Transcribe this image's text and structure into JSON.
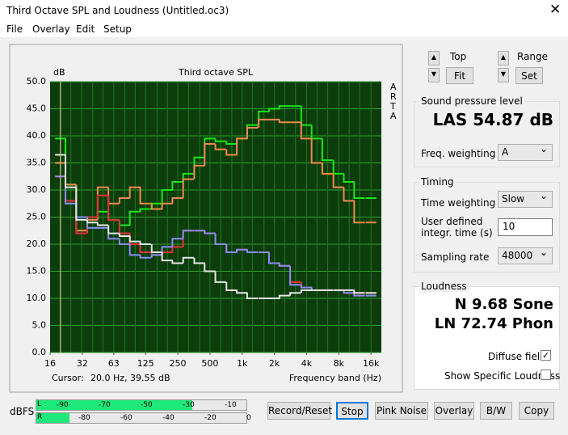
{
  "window": {
    "title": "Third Octave SPL and Loudness (Untitled.oc3)"
  },
  "menu": [
    "File",
    "Overlay",
    "Edit",
    "Setup"
  ],
  "chart_data": {
    "type": "step",
    "title": "Third octave SPL",
    "y_label": "dB",
    "x_label": "Frequency band (Hz)",
    "brand": "ARTA",
    "cursor_label": "Cursor:",
    "cursor_value": "20.0 Hz, 39.55 dB",
    "x": [
      20,
      25,
      31.5,
      40,
      50,
      63,
      80,
      100,
      125,
      160,
      200,
      250,
      315,
      400,
      500,
      630,
      800,
      1000,
      1250,
      1600,
      2000,
      2500,
      3150,
      4000,
      5000,
      6300,
      8000,
      10000,
      12500,
      16000
    ],
    "series": [
      {
        "color": "#19e619",
        "values": [
          39.5,
          31,
          25,
          25,
          26,
          24.5,
          23.5,
          26,
          26.5,
          27.5,
          30,
          31.5,
          33,
          36,
          39.5,
          39,
          38.5,
          39.5,
          42,
          44.5,
          45,
          45.5,
          45.5,
          42,
          39.5,
          35.5,
          33,
          31.5,
          28.5,
          28.5
        ]
      },
      {
        "color": "#f08a4b",
        "values": [
          35,
          31,
          22.5,
          24.5,
          30.5,
          27.5,
          28.5,
          30.5,
          27.5,
          26.5,
          27.5,
          28.5,
          32,
          34.5,
          38.5,
          37.5,
          36.5,
          39.5,
          41.5,
          43,
          43,
          42.5,
          42.5,
          39.5,
          35,
          33,
          30.5,
          28,
          24,
          24
        ]
      },
      {
        "color": "#e8303a",
        "values": [
          32.5,
          28,
          22,
          25,
          29,
          24.5,
          22,
          20,
          18.5,
          18,
          18.5,
          19.5,
          22.5,
          22.5,
          22,
          20,
          18.5,
          19,
          18.5,
          18.5,
          16.5,
          16,
          13,
          12,
          11.5,
          11.5,
          11.5,
          11,
          11,
          11
        ]
      },
      {
        "color": "#8c8cf5",
        "values": [
          32.5,
          27.5,
          25,
          23,
          23,
          21,
          20,
          18,
          17.5,
          18,
          19.5,
          21,
          22.5,
          22.5,
          22,
          20,
          18.5,
          19,
          18.5,
          18.5,
          16.5,
          16,
          12.5,
          12,
          11.5,
          11.5,
          11.5,
          11,
          10.5,
          10.5
        ]
      },
      {
        "color": "#e6e6e6",
        "values": [
          36.5,
          30.5,
          24.5,
          24,
          23.5,
          22,
          21.5,
          20.5,
          20,
          18.5,
          17,
          16.5,
          17.5,
          16.5,
          15,
          13,
          11.5,
          11,
          10,
          10,
          10,
          10.5,
          11,
          11.5,
          11.5,
          11.5,
          11.5,
          11.5,
          11,
          11
        ]
      }
    ],
    "xlim": [
      16,
      20000
    ],
    "log_x": true,
    "xticks": [
      16,
      32,
      63,
      125,
      250,
      500,
      {
        "value": 1000,
        "label": "1k"
      },
      {
        "value": 2000,
        "label": "2k"
      },
      {
        "value": 4000,
        "label": "4k"
      },
      {
        "value": 8000,
        "label": "8k"
      },
      {
        "value": 16000,
        "label": "16k"
      }
    ],
    "ylim": [
      0,
      50
    ],
    "yticks": [
      {
        "value": 0,
        "label": "0.0"
      },
      {
        "value": 5,
        "label": "5.0"
      },
      {
        "value": 10,
        "label": "10.0"
      },
      {
        "value": 15,
        "label": "15.0"
      },
      {
        "value": 20,
        "label": "20.0"
      },
      {
        "value": 25,
        "label": "25.0"
      },
      {
        "value": 30,
        "label": "30.0"
      },
      {
        "value": 35,
        "label": "35.0"
      },
      {
        "value": 40,
        "label": "40.0"
      },
      {
        "value": 45,
        "label": "45.0"
      },
      {
        "value": 50,
        "label": "50.0"
      }
    ],
    "grid": true
  },
  "view": {
    "top": "Top",
    "fit": "Fit",
    "range": "Range",
    "set": "Set"
  },
  "spl": {
    "group": "Sound pressure level",
    "reading": "LAS 54.87 dB",
    "weighting_label": "Freq. weighting",
    "weighting": "A"
  },
  "timing": {
    "group": "Timing",
    "time_weighting_label": "Time weighting",
    "time_weighting": "Slow",
    "integr_label": "User defined integr. time (s)",
    "integr": "10",
    "rate_label": "Sampling rate",
    "rate": "48000"
  },
  "loudness": {
    "group": "Loudness",
    "n": "N 9.68 Sone",
    "ln": "LN 72.74 Phon",
    "diffuse": "Diffuse field",
    "specific": "Show Specific Loudness"
  },
  "meter": {
    "unit": "dBFS",
    "left": "L",
    "right": "R",
    "top_scale": [
      "-90",
      "-70",
      "-50",
      "-30",
      "-10"
    ],
    "bottom_scale": [
      "-80",
      "-60",
      "-40",
      "-20",
      "0"
    ]
  },
  "buttons": [
    "Record/Reset",
    "Stop",
    "Pink Noise",
    "Overlay",
    "B/W",
    "Copy"
  ]
}
